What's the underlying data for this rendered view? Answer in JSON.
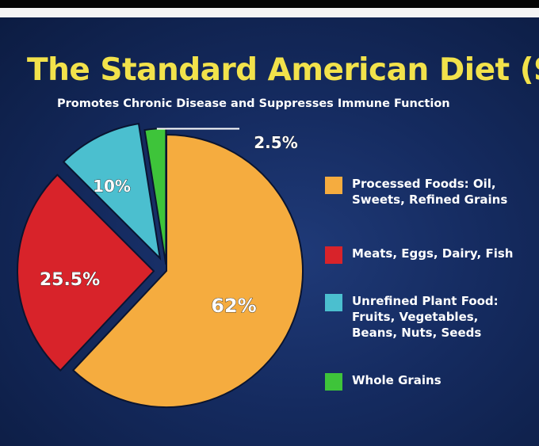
{
  "chart_data": {
    "type": "pie",
    "title": "The Standard American Diet (SAD",
    "subtitle": "Promotes Chronic Disease and Suppresses Immune Function",
    "slices": [
      {
        "label_lines": [
          "Processed Foods: Oil,",
          "Sweets, Refined Grains"
        ],
        "value": 62,
        "value_label": "62%",
        "color": "#f5ac3f"
      },
      {
        "label_lines": [
          "Meats, Eggs, Dairy, Fish"
        ],
        "value": 25.5,
        "value_label": "25.5%",
        "color": "#d8232a"
      },
      {
        "label_lines": [
          "Unrefined Plant Food:",
          "Fruits, Vegetables,",
          "Beans, Nuts, Seeds"
        ],
        "value": 10,
        "value_label": "10%",
        "color": "#4bbfcf"
      },
      {
        "label_lines": [
          "Whole Grains"
        ],
        "value": 2.5,
        "value_label": "2.5%",
        "color": "#3ec43a"
      }
    ],
    "legend_position": "right",
    "exploded_slices": [
      "Meats, Eggs, Dairy, Fish",
      "Unrefined Plant Food: Fruits, Vegetables, Beans, Nuts, Seeds",
      "Whole Grains"
    ]
  }
}
